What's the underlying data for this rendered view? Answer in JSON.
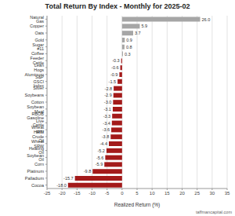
{
  "chart_data": {
    "type": "bar",
    "orientation": "horizontal",
    "title": "Total Return By Index - Monthly for 2025-02",
    "x_label": "Realized Return (%)",
    "source": "taffmancapital.com",
    "categories": [
      "Natural Gas",
      "Copper",
      "Oats",
      "Gold",
      "Sugar #11",
      "Coffee",
      "Feeder Cattle",
      "Lean Hogs",
      "Aluminum",
      "S&P GSCI Index",
      "Silver",
      "Soybeans",
      "Cotton",
      "Soybean Meal",
      "RBOB Gasoline",
      "Live Cattle",
      "Wheat HRW",
      "WTI Crude Oil",
      "Wheat SRW",
      "Heating Oil",
      "Soybean Oil",
      "Corn",
      "Platinum",
      "Palladium",
      "Cocoa"
    ],
    "values": [
      26.0,
      5.9,
      3.7,
      0.9,
      0.8,
      0.3,
      -0.3,
      -0.6,
      -0.9,
      -1.5,
      -2.8,
      -2.9,
      -3.0,
      -3.1,
      -3.3,
      -3.4,
      -3.6,
      -3.8,
      -4.4,
      -5.2,
      -5.6,
      -5.9,
      -9.8,
      -15.7,
      -18.0
    ],
    "value_labels": [
      "26.0",
      "5.9",
      "3.7",
      "0.9",
      "0.8",
      "0.3",
      "-0.3",
      "-0.6",
      "-0.9",
      "-1.5",
      "-2.8",
      "-2.9",
      "-3.0",
      "-3.1",
      "-3.3",
      "-3.4",
      "-3.6",
      "-3.8",
      "-4.4",
      "-5.2",
      "-5.6",
      "-5.9",
      "-9.8",
      "-15.7",
      "-18.0"
    ],
    "colors": [
      "#a6a6a6",
      "#a6a6a6",
      "#a6a6a6",
      "#a6a6a6",
      "#a6a6a6",
      "#a6a6a6",
      "#a31a1a",
      "#a31a1a",
      "#a31a1a",
      "#a31a1a",
      "#a31a1a",
      "#a31a1a",
      "#a31a1a",
      "#a31a1a",
      "#a31a1a",
      "#a31a1a",
      "#a31a1a",
      "#a31a1a",
      "#a31a1a",
      "#a31a1a",
      "#a31a1a",
      "#a31a1a",
      "#a31a1a",
      "#a31a1a",
      "#a31a1a"
    ],
    "xlim": [
      -25,
      35
    ],
    "xticks": [
      -25,
      -20,
      -15,
      -10,
      -5,
      0,
      5,
      10,
      15,
      20,
      25,
      30,
      35
    ],
    "grid": true,
    "data_labels": true
  }
}
